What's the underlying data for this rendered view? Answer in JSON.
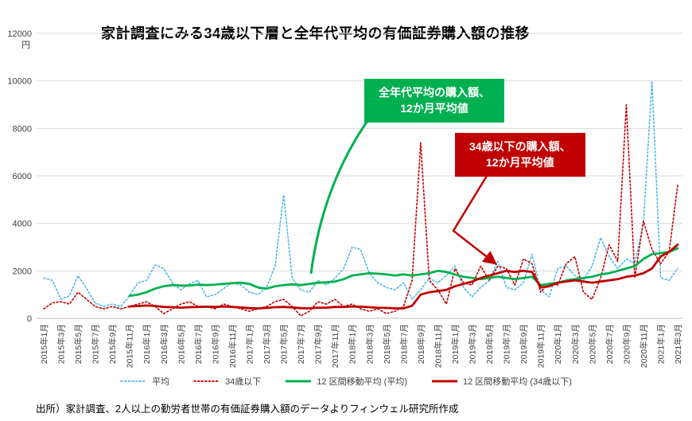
{
  "page": {
    "title": "家計調査にみる34歳以下層と全年代平均の有価証券購入額の推移",
    "source": "出所）家計調査、2人以上の勤労者世帯の有価証券購入額のデータよりフィンウェル研究所作成"
  },
  "annotations": {
    "green": {
      "line1": "全年代平均の購入額、",
      "line2": "12か月平均値",
      "color": "#00B050"
    },
    "red": {
      "line1": "34歳以下の購入額、",
      "line2": "12か月平均値",
      "color": "#C00000"
    }
  },
  "chart_data": {
    "type": "line",
    "title": "家計調査にみる34歳以下層と全年代平均の有価証券購入額の推移",
    "ylabel": "円",
    "y_unit_label": "円",
    "ylim": [
      0,
      12000
    ],
    "y_ticks": [
      0,
      2000,
      4000,
      6000,
      8000,
      10000,
      12000
    ],
    "grid": "horizontal",
    "legend_position": "bottom",
    "x_start": "2015年1月",
    "x_end": "2021年3月",
    "x_points_monthly": 75,
    "x_tick_labels": [
      "2015年1月",
      "2015年3月",
      "2015年5月",
      "2015年7月",
      "2015年9月",
      "2015年11月",
      "2016年1月",
      "2016年3月",
      "2016年5月",
      "2016年7月",
      "2016年9月",
      "2016年11月",
      "2017年1月",
      "2017年3月",
      "2017年5月",
      "2017年7月",
      "2017年9月",
      "2017年11月",
      "2018年1月",
      "2018年3月",
      "2018年5月",
      "2018年7月",
      "2018年9月",
      "2018年11月",
      "2019年1月",
      "2019年3月",
      "2019年5月",
      "2019年7月",
      "2019年9月",
      "2019年11月",
      "2020年1月",
      "2020年3月",
      "2020年5月",
      "2020年7月",
      "2020年9月",
      "2020年11月",
      "2021年1月",
      "2021年3月"
    ],
    "series": [
      {
        "name": "平均",
        "style": "dotted",
        "color": "#4FB8E8",
        "values": [
          1700,
          1600,
          800,
          950,
          1800,
          1250,
          650,
          500,
          600,
          500,
          950,
          1500,
          1600,
          2250,
          2100,
          1500,
          1200,
          1450,
          1600,
          900,
          1000,
          1250,
          1500,
          1400,
          1100,
          1000,
          1300,
          2200,
          5200,
          1700,
          1200,
          1100,
          1600,
          1400,
          1700,
          2100,
          3000,
          2900,
          1900,
          1500,
          1300,
          1200,
          1500,
          800,
          1200,
          1700,
          1500,
          1800,
          2200,
          1300,
          900,
          1300,
          1600,
          2400,
          1300,
          1200,
          1500,
          2700,
          1200,
          900,
          2100,
          2200,
          1800,
          1600,
          2200,
          3400,
          2600,
          2100,
          2500,
          2300,
          4000,
          10000,
          1700,
          1600,
          2100
        ]
      },
      {
        "name": "34歳以下",
        "style": "dotted",
        "color": "#C00000",
        "values": [
          400,
          650,
          700,
          600,
          1100,
          800,
          500,
          400,
          500,
          400,
          500,
          600,
          700,
          500,
          200,
          400,
          600,
          700,
          500,
          500,
          400,
          600,
          500,
          400,
          300,
          400,
          500,
          700,
          800,
          500,
          100,
          300,
          700,
          600,
          800,
          500,
          600,
          400,
          300,
          400,
          200,
          300,
          500,
          1600,
          7400,
          1600,
          1200,
          600,
          2100,
          1500,
          1400,
          2200,
          1600,
          2200,
          2100,
          1400,
          2500,
          2300,
          1100,
          1500,
          1400,
          2300,
          2600,
          1100,
          800,
          1700,
          3100,
          2400,
          9000,
          1700,
          4100,
          2900,
          2300,
          2800,
          5600
        ]
      },
      {
        "name": "12 区間移動平均 (平均)",
        "style": "solid",
        "color": "#00B050",
        "values": [
          null,
          null,
          null,
          null,
          null,
          null,
          null,
          null,
          null,
          null,
          950,
          1000,
          1100,
          1250,
          1350,
          1400,
          1380,
          1380,
          1420,
          1400,
          1420,
          1450,
          1480,
          1500,
          1450,
          1300,
          1250,
          1350,
          1400,
          1430,
          1400,
          1450,
          1500,
          1520,
          1550,
          1650,
          1800,
          1850,
          1900,
          1880,
          1850,
          1800,
          1850,
          1800,
          1850,
          1900,
          2000,
          1950,
          1850,
          1750,
          1700,
          1650,
          1700,
          1750,
          1700,
          1650,
          1700,
          1750,
          1400,
          1450,
          1500,
          1600,
          1650,
          1700,
          1750,
          1850,
          1900,
          2000,
          2100,
          2200,
          2500,
          2700,
          2750,
          2800,
          2950
        ]
      },
      {
        "name": "12 区間移動平均 (34歳以下)",
        "style": "solid",
        "color": "#C00000",
        "values": [
          null,
          null,
          null,
          null,
          null,
          null,
          null,
          null,
          null,
          null,
          500,
          520,
          540,
          520,
          480,
          470,
          450,
          470,
          480,
          490,
          480,
          500,
          480,
          460,
          430,
          420,
          440,
          470,
          480,
          460,
          430,
          420,
          450,
          450,
          480,
          480,
          500,
          490,
          470,
          450,
          440,
          420,
          420,
          530,
          1000,
          1100,
          1150,
          1200,
          1350,
          1450,
          1550,
          1700,
          1800,
          1900,
          2000,
          1950,
          2000,
          1950,
          1300,
          1350,
          1500,
          1550,
          1600,
          1550,
          1500,
          1550,
          1600,
          1650,
          1750,
          1800,
          1900,
          2100,
          2600,
          2800,
          3100
        ]
      }
    ]
  }
}
